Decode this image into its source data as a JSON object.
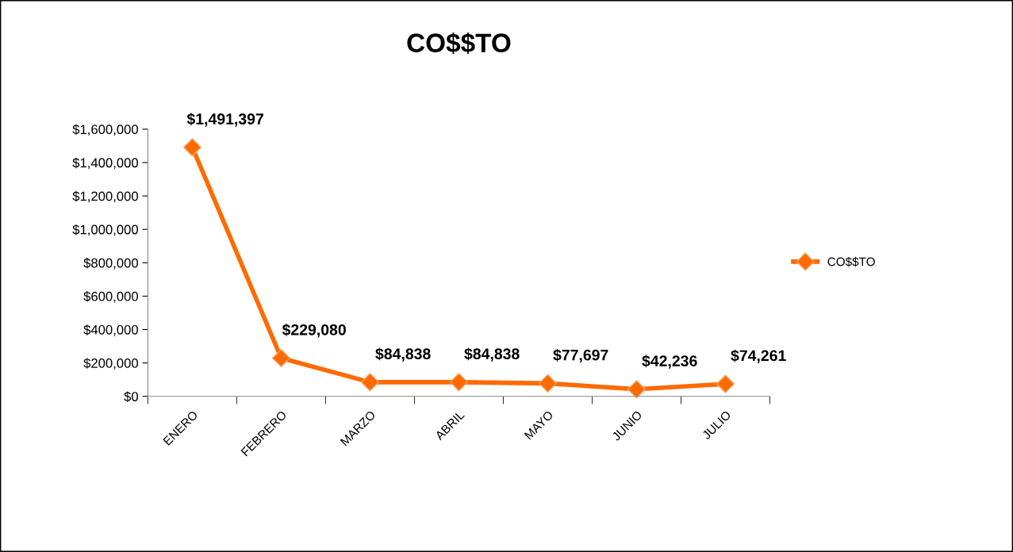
{
  "chart_data": {
    "type": "line",
    "title": "CO$$TO",
    "categories": [
      "ENERO",
      "FEBRERO",
      "MARZO",
      "ABRIL",
      "MAYO",
      "JUNIO",
      "JULIO"
    ],
    "series": [
      {
        "name": "CO$$TO",
        "color": "#ff6a00",
        "values": [
          1491397,
          229080,
          84838,
          84838,
          77697,
          42236,
          74261
        ],
        "value_labels": [
          "$1,491,397",
          "$229,080",
          "$84,838",
          "$84,838",
          "$77,697",
          "$42,236",
          "$74,261"
        ]
      }
    ],
    "ylim": [
      0,
      1600000
    ],
    "yticks": [
      {
        "value": 0,
        "label": "$0"
      },
      {
        "value": 200000,
        "label": "$200,000"
      },
      {
        "value": 400000,
        "label": "$400,000"
      },
      {
        "value": 600000,
        "label": "$600,000"
      },
      {
        "value": 800000,
        "label": "$800,000"
      },
      {
        "value": 1000000,
        "label": "$1,000,000"
      },
      {
        "value": 1200000,
        "label": "$1,200,000"
      },
      {
        "value": 1400000,
        "label": "$1,400,000"
      },
      {
        "value": 1600000,
        "label": "$1,600,000"
      }
    ],
    "grid": false,
    "legend": "right",
    "marker": "diamond",
    "line_style": "solid"
  }
}
